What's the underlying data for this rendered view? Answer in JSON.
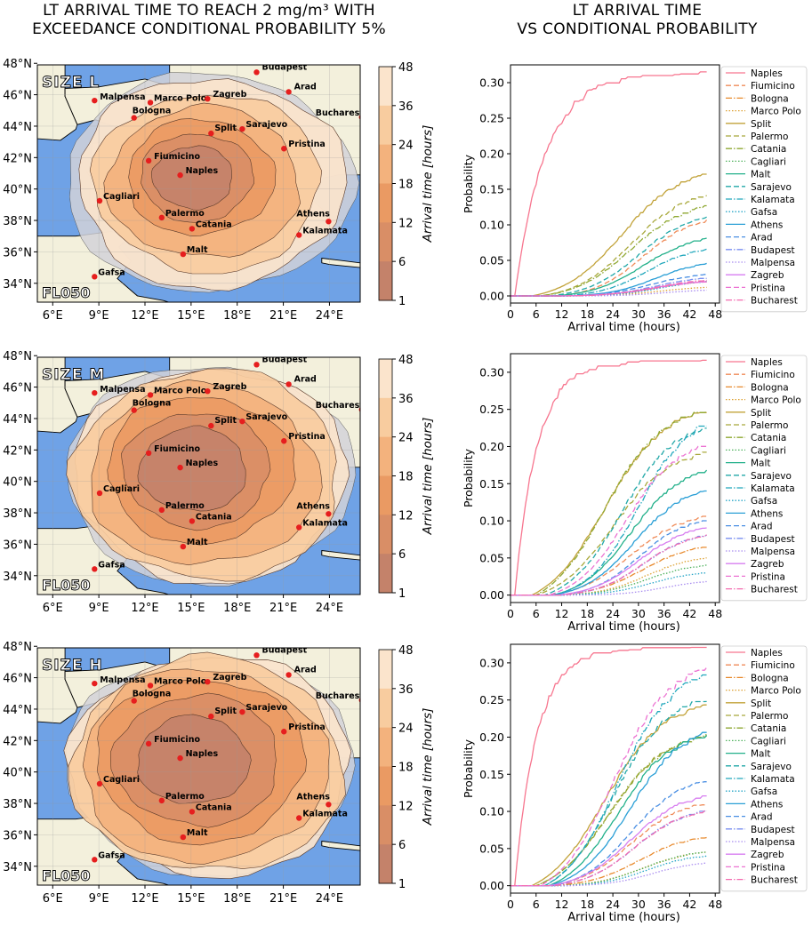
{
  "titles": {
    "left_line1": "LT ARRIVAL TIME TO REACH 2 mg/m³ WITH",
    "left_line2": "EXCEEDANCE CONDITIONAL PROBABILITY 5%",
    "right_line1": "LT ARRIVAL TIME",
    "right_line2": "VS CONDITIONAL PROBABILITY"
  },
  "colors": {
    "sea": "#6fa2e6",
    "land": "#f3f0dc",
    "no_data": "#d2d2d8",
    "palette": [
      "#c4826a",
      "#d98e66",
      "#ea9a63",
      "#f3b27d",
      "#f8cc9f",
      "#fbe4cc"
    ]
  },
  "map_common": {
    "lon_ticks": [
      "6°E",
      "9°E",
      "12°E",
      "15°E",
      "18°E",
      "21°E",
      "24°E"
    ],
    "lat_ticks": [
      "48°N",
      "46°N",
      "44°N",
      "42°N",
      "40°N",
      "38°N",
      "36°N",
      "34°N"
    ],
    "flight_level": "FL050",
    "colorbar_label": "Arrival time [hours]",
    "colorbar_ticks": [
      "48",
      "36",
      "24",
      "18",
      "12",
      "6",
      "1"
    ],
    "cities": [
      "Budapest",
      "Malpensa",
      "Marco Polo",
      "Zagreb",
      "Arad",
      "Bucharest",
      "Bologna",
      "Sarajevo",
      "Split",
      "Pristina",
      "Fiumicino",
      "Naples",
      "Cagliari",
      "Palermo",
      "Catania",
      "Athens",
      "Kalamata",
      "Malt",
      "Gafsa"
    ]
  },
  "panels": [
    {
      "size_label": "SIZE L"
    },
    {
      "size_label": "SIZE M"
    },
    {
      "size_label": "SIZE H"
    }
  ],
  "chart_data": [
    {
      "type": "line",
      "title": "LT ARRIVAL TIME VS CONDITIONAL PROBABILITY",
      "panel": "SIZE L",
      "xlabel": "Arrival time (hours)",
      "ylabel": "Probability",
      "xlim": [
        0,
        49
      ],
      "ylim": [
        -0.01,
        0.325
      ],
      "xticks": [
        0,
        6,
        12,
        18,
        24,
        30,
        36,
        42,
        48
      ],
      "yticks": [
        0.0,
        0.05,
        0.1,
        0.15,
        0.2,
        0.25,
        0.3
      ],
      "series": [
        {
          "name": "Naples",
          "start": 1,
          "end_value": 0.31,
          "half": 7
        },
        {
          "name": "Fiumicino",
          "start": 11,
          "end_value": 0.105,
          "half": 31
        },
        {
          "name": "Bologna",
          "start": 12,
          "end_value": 0.02,
          "half": 34
        },
        {
          "name": "Marco Polo",
          "start": 13,
          "end_value": 0.012,
          "half": 35
        },
        {
          "name": "Split",
          "start": 5,
          "end_value": 0.17,
          "half": 26
        },
        {
          "name": "Palermo",
          "start": 7,
          "end_value": 0.14,
          "half": 28
        },
        {
          "name": "Catania",
          "start": 7,
          "end_value": 0.125,
          "half": 28
        },
        {
          "name": "Cagliari",
          "start": 14,
          "end_value": 0.02,
          "half": 34
        },
        {
          "name": "Malt",
          "start": 10,
          "end_value": 0.08,
          "half": 31
        },
        {
          "name": "Sarajevo",
          "start": 9,
          "end_value": 0.11,
          "half": 30
        },
        {
          "name": "Kalamata",
          "start": 12,
          "end_value": 0.065,
          "half": 32
        },
        {
          "name": "Gafsa",
          "start": 15,
          "end_value": 0.02,
          "half": 35
        },
        {
          "name": "Athens",
          "start": 13,
          "end_value": 0.045,
          "half": 34
        },
        {
          "name": "Arad",
          "start": 12,
          "end_value": 0.03,
          "half": 33
        },
        {
          "name": "Budapest",
          "start": 13,
          "end_value": 0.025,
          "half": 34
        },
        {
          "name": "Malpensa",
          "start": 16,
          "end_value": 0.008,
          "half": 36
        },
        {
          "name": "Zagreb",
          "start": 12,
          "end_value": 0.02,
          "half": 33
        },
        {
          "name": "Pristina",
          "start": 12,
          "end_value": 0.02,
          "half": 34
        },
        {
          "name": "Bucharest",
          "start": 13,
          "end_value": 0.022,
          "half": 34
        }
      ]
    },
    {
      "type": "line",
      "title": "LT ARRIVAL TIME VS CONDITIONAL PROBABILITY",
      "panel": "SIZE M",
      "xlabel": "Arrival time (hours)",
      "ylabel": "Probability",
      "xlim": [
        0,
        49
      ],
      "ylim": [
        -0.01,
        0.325
      ],
      "xticks": [
        0,
        6,
        12,
        18,
        24,
        30,
        36,
        42,
        48
      ],
      "yticks": [
        0.0,
        0.05,
        0.1,
        0.15,
        0.2,
        0.25,
        0.3
      ],
      "series": [
        {
          "name": "Naples",
          "start": 1,
          "end_value": 0.31,
          "half": 5
        },
        {
          "name": "Fiumicino",
          "start": 9,
          "end_value": 0.105,
          "half": 28
        },
        {
          "name": "Bologna",
          "start": 10,
          "end_value": 0.065,
          "half": 31
        },
        {
          "name": "Marco Polo",
          "start": 12,
          "end_value": 0.05,
          "half": 32
        },
        {
          "name": "Split",
          "start": 5,
          "end_value": 0.245,
          "half": 22
        },
        {
          "name": "Palermo",
          "start": 6,
          "end_value": 0.19,
          "half": 24
        },
        {
          "name": "Catania",
          "start": 6,
          "end_value": 0.245,
          "half": 22
        },
        {
          "name": "Cagliari",
          "start": 12,
          "end_value": 0.04,
          "half": 32
        },
        {
          "name": "Malt",
          "start": 10,
          "end_value": 0.165,
          "half": 28
        },
        {
          "name": "Sarajevo",
          "start": 8,
          "end_value": 0.225,
          "half": 26
        },
        {
          "name": "Kalamata",
          "start": 10,
          "end_value": 0.23,
          "half": 30
        },
        {
          "name": "Gafsa",
          "start": 13,
          "end_value": 0.03,
          "half": 33
        },
        {
          "name": "Athens",
          "start": 10,
          "end_value": 0.14,
          "half": 29
        },
        {
          "name": "Arad",
          "start": 12,
          "end_value": 0.1,
          "half": 30
        },
        {
          "name": "Budapest",
          "start": 12,
          "end_value": 0.08,
          "half": 31
        },
        {
          "name": "Malpensa",
          "start": 16,
          "end_value": 0.018,
          "half": 36
        },
        {
          "name": "Zagreb",
          "start": 11,
          "end_value": 0.09,
          "half": 30
        },
        {
          "name": "Pristina",
          "start": 9,
          "end_value": 0.2,
          "half": 27
        },
        {
          "name": "Bucharest",
          "start": 12,
          "end_value": 0.08,
          "half": 31
        }
      ]
    },
    {
      "type": "line",
      "title": "LT ARRIVAL TIME VS CONDITIONAL PROBABILITY",
      "panel": "SIZE H",
      "xlabel": "Arrival time (hours)",
      "ylabel": "Probability",
      "xlim": [
        0,
        49
      ],
      "ylim": [
        -0.01,
        0.325
      ],
      "xticks": [
        0,
        6,
        12,
        18,
        24,
        30,
        36,
        42,
        48
      ],
      "yticks": [
        0.0,
        0.05,
        0.1,
        0.15,
        0.2,
        0.25,
        0.3
      ],
      "series": [
        {
          "name": "Naples",
          "start": 1,
          "end_value": 0.315,
          "half": 5
        },
        {
          "name": "Fiumicino",
          "start": 9,
          "end_value": 0.11,
          "half": 28
        },
        {
          "name": "Bologna",
          "start": 10,
          "end_value": 0.065,
          "half": 30
        },
        {
          "name": "Marco Polo",
          "start": 11,
          "end_value": 0.045,
          "half": 31
        },
        {
          "name": "Split",
          "start": 5,
          "end_value": 0.24,
          "half": 22
        },
        {
          "name": "Palermo",
          "start": 6,
          "end_value": 0.2,
          "half": 23
        },
        {
          "name": "Catania",
          "start": 6,
          "end_value": 0.2,
          "half": 23
        },
        {
          "name": "Cagliari",
          "start": 12,
          "end_value": 0.045,
          "half": 31
        },
        {
          "name": "Malt",
          "start": 9,
          "end_value": 0.2,
          "half": 25
        },
        {
          "name": "Sarajevo",
          "start": 8,
          "end_value": 0.25,
          "half": 24
        },
        {
          "name": "Kalamata",
          "start": 8,
          "end_value": 0.28,
          "half": 25
        },
        {
          "name": "Gafsa",
          "start": 13,
          "end_value": 0.04,
          "half": 32
        },
        {
          "name": "Athens",
          "start": 9,
          "end_value": 0.205,
          "half": 28
        },
        {
          "name": "Arad",
          "start": 10,
          "end_value": 0.14,
          "half": 28
        },
        {
          "name": "Budapest",
          "start": 10,
          "end_value": 0.1,
          "half": 29
        },
        {
          "name": "Malpensa",
          "start": 14,
          "end_value": 0.03,
          "half": 33
        },
        {
          "name": "Zagreb",
          "start": 9,
          "end_value": 0.12,
          "half": 28
        },
        {
          "name": "Pristina",
          "start": 7,
          "end_value": 0.29,
          "half": 24
        },
        {
          "name": "Bucharest",
          "start": 10,
          "end_value": 0.1,
          "half": 29
        }
      ]
    }
  ]
}
